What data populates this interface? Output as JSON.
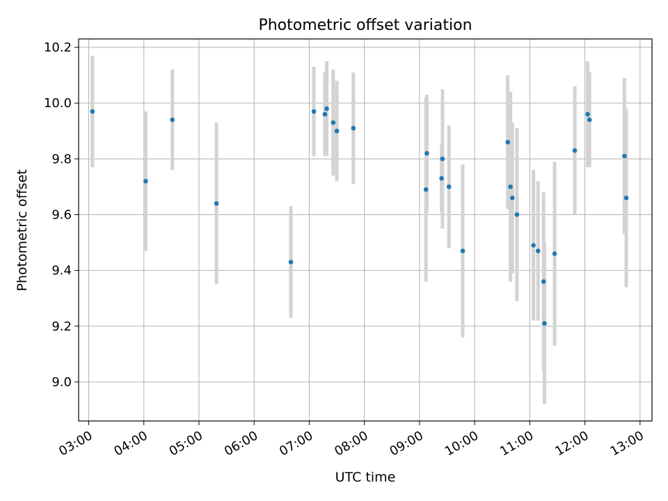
{
  "chart_data": {
    "type": "scatter",
    "title": "Photometric offset variation",
    "xlabel": "UTC time",
    "ylabel": "Photometric offset",
    "x_ticks": [
      "03:00",
      "04:00",
      "05:00",
      "06:00",
      "07:00",
      "08:00",
      "09:00",
      "10:00",
      "11:00",
      "12:00",
      "13:00"
    ],
    "y_ticks": [
      "9.0",
      "9.2",
      "9.4",
      "9.6",
      "9.8",
      "10.0",
      "10.2"
    ],
    "xlim": [
      "02:49",
      "13:13"
    ],
    "ylim": [
      8.86,
      10.23
    ],
    "grid": true,
    "legend": "none",
    "marker_color": "#1f77b4",
    "errorbar_color": "#d3d3d3",
    "series": [
      {
        "points": [
          {
            "x": "03:04",
            "y": 9.97,
            "err": 0.2
          },
          {
            "x": "04:02",
            "y": 9.72,
            "err": 0.25
          },
          {
            "x": "04:31",
            "y": 9.94,
            "err": 0.18
          },
          {
            "x": "05:19",
            "y": 9.64,
            "err": 0.29
          },
          {
            "x": "06:40",
            "y": 9.43,
            "err": 0.2
          },
          {
            "x": "07:05",
            "y": 9.97,
            "err": 0.16
          },
          {
            "x": "07:17",
            "y": 9.96,
            "err": 0.15
          },
          {
            "x": "07:19",
            "y": 9.98,
            "err": 0.17
          },
          {
            "x": "07:26",
            "y": 9.93,
            "err": 0.19
          },
          {
            "x": "07:30",
            "y": 9.9,
            "err": 0.18
          },
          {
            "x": "07:48",
            "y": 9.91,
            "err": 0.2
          },
          {
            "x": "09:07",
            "y": 9.69,
            "err": 0.33
          },
          {
            "x": "09:08",
            "y": 9.82,
            "err": 0.21
          },
          {
            "x": "09:24",
            "y": 9.73,
            "err": 0.12
          },
          {
            "x": "09:25",
            "y": 9.8,
            "err": 0.25
          },
          {
            "x": "09:32",
            "y": 9.7,
            "err": 0.22
          },
          {
            "x": "09:47",
            "y": 9.47,
            "err": 0.31
          },
          {
            "x": "10:36",
            "y": 9.86,
            "err": 0.24
          },
          {
            "x": "10:39",
            "y": 9.7,
            "err": 0.34
          },
          {
            "x": "10:41",
            "y": 9.66,
            "err": 0.27
          },
          {
            "x": "10:46",
            "y": 9.6,
            "err": 0.31
          },
          {
            "x": "11:04",
            "y": 9.49,
            "err": 0.27
          },
          {
            "x": "11:09",
            "y": 9.47,
            "err": 0.25
          },
          {
            "x": "11:15",
            "y": 9.36,
            "err": 0.32
          },
          {
            "x": "11:16",
            "y": 9.21,
            "err": 0.29
          },
          {
            "x": "11:27",
            "y": 9.46,
            "err": 0.33
          },
          {
            "x": "11:49",
            "y": 9.83,
            "err": 0.23
          },
          {
            "x": "12:03",
            "y": 9.96,
            "err": 0.19
          },
          {
            "x": "12:05",
            "y": 9.94,
            "err": 0.17
          },
          {
            "x": "12:43",
            "y": 9.81,
            "err": 0.28
          },
          {
            "x": "12:45",
            "y": 9.66,
            "err": 0.32
          }
        ]
      }
    ]
  }
}
